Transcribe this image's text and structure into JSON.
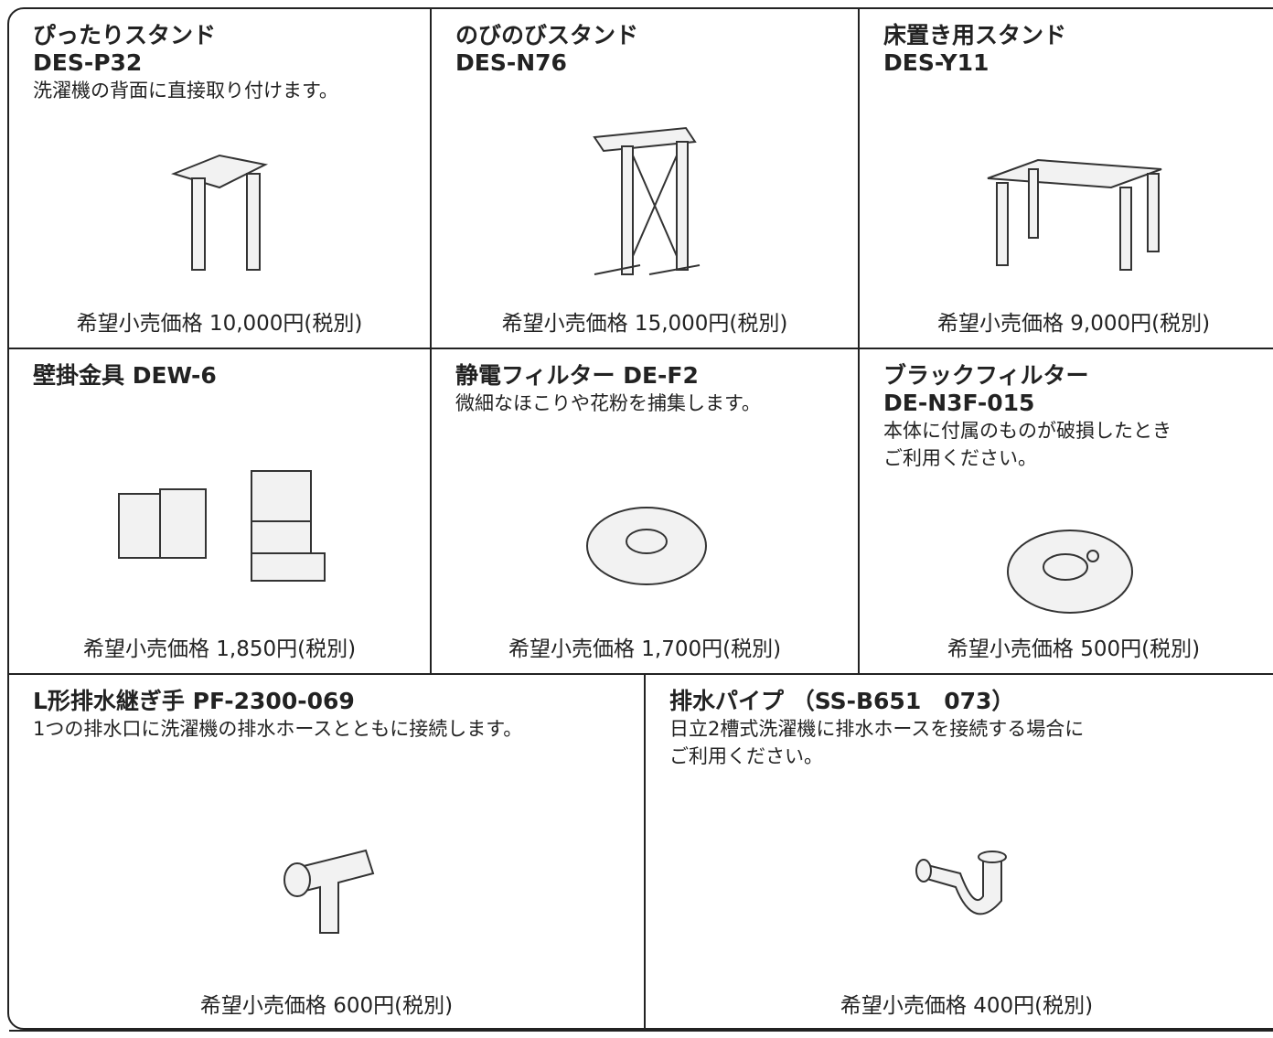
{
  "products": [
    {
      "name": [
        "ぴったりスタンド",
        "DES-P32"
      ],
      "description": [
        "洗濯機の背面に直接取り付けます。"
      ],
      "price": "希望小売価格 10,000円(税別)"
    },
    {
      "name": [
        "のびのびスタンド",
        "DES-N76"
      ],
      "description": [],
      "price": "希望小売価格 15,000円(税別)"
    },
    {
      "name": [
        "床置き用スタンド",
        "DES-Y11"
      ],
      "description": [],
      "price": "希望小売価格 9,000円(税別)"
    },
    {
      "name": [
        "壁掛金具 DEW-6"
      ],
      "description": [],
      "price": "希望小売価格 1,850円(税別)"
    },
    {
      "name": [
        "静電フィルター DE-F2"
      ],
      "description": [
        "微細なほこりや花粉を捕集します。"
      ],
      "price": "希望小売価格 1,700円(税別)"
    },
    {
      "name": [
        "ブラックフィルター",
        "DE-N3F-015"
      ],
      "description": [
        "本体に付属のものが破損したとき",
        "ご利用ください。"
      ],
      "price": "希望小売価格 500円(税別)"
    },
    {
      "name": [
        "L形排水継ぎ手 PF-2300-069"
      ],
      "description": [
        "1つの排水口に洗濯機の排水ホースとともに接続します。"
      ],
      "price": "希望小売価格 600円(税別)"
    },
    {
      "name": [
        "排水パイプ （SS-B651　073）"
      ],
      "description": [
        "日立2槽式洗濯機に排水ホースを接続する場合に",
        "ご利用ください。"
      ],
      "price": "希望小売価格 400円(税別)"
    }
  ]
}
